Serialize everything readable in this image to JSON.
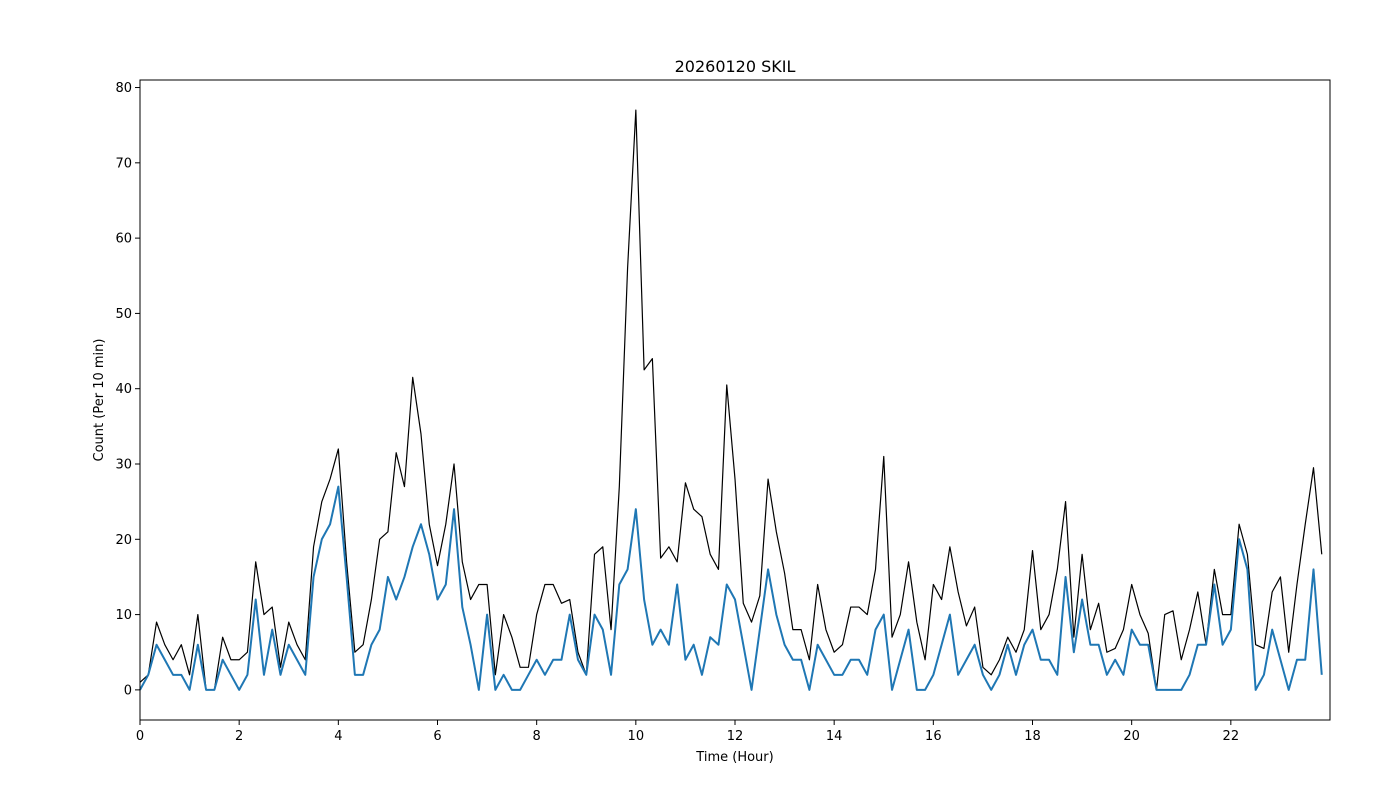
{
  "chart_data": {
    "type": "line",
    "title": "20260120 SKIL",
    "xlabel": "Time (Hour)",
    "ylabel": "Count (Per 10 min)",
    "xlim": [
      0,
      24
    ],
    "ylim": [
      -4,
      81
    ],
    "x_ticks": [
      0,
      2,
      4,
      6,
      8,
      10,
      12,
      14,
      16,
      18,
      20,
      22
    ],
    "y_ticks": [
      0,
      10,
      20,
      30,
      40,
      50,
      60,
      70,
      80
    ],
    "grid": false,
    "legend": "none",
    "x_step_hours": 0.16667,
    "series": [
      {
        "color": "#000000",
        "line_width": 1.2,
        "values": [
          1,
          2,
          9,
          6,
          4,
          6,
          2,
          10,
          0,
          0,
          7,
          4,
          4,
          5,
          17,
          10,
          11,
          3,
          9,
          6,
          4,
          19,
          25,
          28,
          32,
          17,
          5,
          6,
          12,
          20,
          21,
          31.5,
          27,
          41.5,
          34,
          22,
          16.5,
          22,
          30,
          17,
          12,
          14,
          14,
          2,
          10,
          7,
          3,
          3,
          10,
          14,
          14,
          11.5,
          12,
          5,
          2,
          18,
          19,
          8,
          27,
          56,
          77,
          42.5,
          44,
          17.5,
          19,
          17,
          27.5,
          24,
          23,
          18,
          16,
          40.5,
          28,
          11.5,
          9,
          12.5,
          28,
          21,
          15.5,
          8,
          8,
          4,
          14,
          8,
          5,
          6,
          11,
          11,
          10,
          16,
          31,
          7,
          10,
          17,
          9,
          4,
          14,
          12,
          19,
          13,
          8.5,
          11,
          3,
          2,
          4,
          7,
          5,
          8,
          18.5,
          8,
          10,
          16,
          25,
          7,
          18,
          8,
          11.5,
          5,
          5.5,
          8,
          14,
          10,
          7.5,
          0,
          10,
          10.5,
          4,
          8,
          13,
          6,
          16,
          10,
          10,
          22,
          18,
          6,
          5.5,
          13,
          15,
          5,
          14,
          22,
          29.5,
          18
        ]
      },
      {
        "color": "#1f77b4",
        "line_width": 2,
        "values": [
          0,
          2,
          6,
          4,
          2,
          2,
          0,
          6,
          0,
          0,
          4,
          2,
          0,
          2,
          12,
          2,
          8,
          2,
          6,
          4,
          2,
          15,
          20,
          22,
          27,
          15,
          2,
          2,
          6,
          8,
          15,
          12,
          15,
          19,
          22,
          18,
          12,
          14,
          24,
          11,
          6,
          0,
          10,
          0,
          2,
          0,
          0,
          2,
          4,
          2,
          4,
          4,
          10,
          4,
          2,
          10,
          8,
          2,
          14,
          16,
          24,
          12,
          6,
          8,
          6,
          14,
          4,
          6,
          2,
          7,
          6,
          14,
          12,
          6,
          0,
          8,
          16,
          10,
          6,
          4,
          4,
          0,
          6,
          4,
          2,
          2,
          4,
          4,
          2,
          8,
          10,
          0,
          4,
          8,
          0,
          0,
          2,
          6,
          10,
          2,
          4,
          6,
          2,
          0,
          2,
          6,
          2,
          6,
          8,
          4,
          4,
          2,
          15,
          5,
          12,
          6,
          6,
          2,
          4,
          2,
          8,
          6,
          6,
          0,
          0,
          0,
          0,
          2,
          6,
          6,
          14,
          6,
          8,
          20,
          16,
          0,
          2,
          8,
          4,
          0,
          4,
          4,
          16,
          2
        ]
      }
    ]
  }
}
